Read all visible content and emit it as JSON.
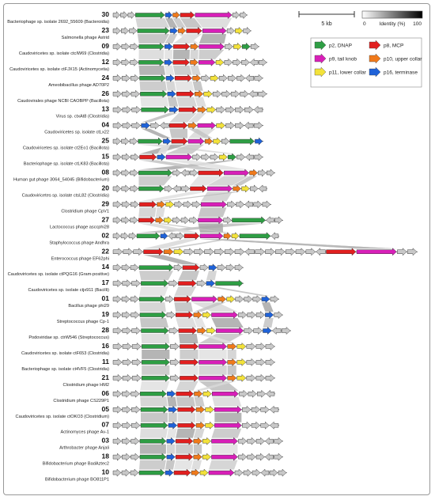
{
  "scale_bar": {
    "label": "5 kb"
  },
  "identity_bar": {
    "min": "0",
    "title": "Identity (%)",
    "max": "100"
  },
  "legend": [
    {
      "label": "p2, DNAP",
      "color": "#2e9e44"
    },
    {
      "label": "p8, MCP",
      "color": "#e11f1f"
    },
    {
      "label": "p9, tail knob",
      "color": "#d81fb8"
    },
    {
      "label": "p10, upper collar",
      "color": "#f07a1b"
    },
    {
      "label": "p11, lower collar",
      "color": "#f3e23a"
    },
    {
      "label": "p16, terminase",
      "color": "#1f62d8"
    }
  ],
  "genomes": [
    {
      "num": "30",
      "name": "Bacteriophage sp. isolate 2692_55609 (Bacteroidia)"
    },
    {
      "num": "23",
      "name": "Salmonella phage Astrid"
    },
    {
      "num": "09",
      "name": "Caudoviricetes sp. isolate ctcIW69 (Clostridia)"
    },
    {
      "num": "12",
      "name": "Caudoviricetes sp. isolate ctFJX15 (Actinomycetia)"
    },
    {
      "num": "24",
      "name": "Ameobibacillus phage AD70P2"
    },
    {
      "num": "26",
      "name": "Caudovirales phage NCBI CAOBPP (Bacillota)"
    },
    {
      "num": "13",
      "name": "Virus sp. ctxAt8 (Clostridia)"
    },
    {
      "num": "04",
      "name": "Caudoviricetes sp. isolate ctLx22"
    },
    {
      "num": "25",
      "name": "Caudoviricetes sp. isolate ct2Eo1 (Bacillota)"
    },
    {
      "num": "15",
      "name": "Bacteriophage sp. isolate ctLK83 (Bacillota)"
    },
    {
      "num": "08",
      "name": "Human gut phage 3064_54045 (Bifidobacterium)"
    },
    {
      "num": "20",
      "name": "Caudoviricetes sp. isolate ctsL82 (Clostridia)"
    },
    {
      "num": "29",
      "name": "Clostridium phage CpV1"
    },
    {
      "num": "27",
      "name": "Lactococcus phage asccphi28"
    },
    {
      "num": "02",
      "name": "Staphylococcus phage Andhra"
    },
    {
      "num": "22",
      "name": "Enterococcus phage EF62phi"
    },
    {
      "num": "14",
      "name": "Caudoviricetes sp. isolate ctPQG16 (Gram-positive)"
    },
    {
      "num": "17",
      "name": "Caudoviricetes sp. isolate ctjx911 (Bacilli)"
    },
    {
      "num": "01",
      "name": "Bacillus phage phi29"
    },
    {
      "num": "19",
      "name": "Streptococcus phage Cp-1"
    },
    {
      "num": "28",
      "name": "Podoviridae sp. ctrW546 (Streptococcus)"
    },
    {
      "num": "16",
      "name": "Caudoviricetes sp. isolate ctF653 (Clostridia)"
    },
    {
      "num": "11",
      "name": "Bacteriophage sp. isolate ct4VF5 (Clostridia)"
    },
    {
      "num": "21",
      "name": "Clostridium phage HM2"
    },
    {
      "num": "06",
      "name": "Clostridium phage CS229P1"
    },
    {
      "num": "05",
      "name": "Caudoviricetes sp. isolate ctOKO3 (Clostridium)"
    },
    {
      "num": "07",
      "name": "Actinomyces phage Av-1"
    },
    {
      "num": "03",
      "name": "Arthrobacter phage Anjali"
    },
    {
      "num": "18",
      "name": "Bifidobacterium phage BadAztec2"
    },
    {
      "num": "10",
      "name": "Bifidobacterium phage BO811P1"
    }
  ]
}
